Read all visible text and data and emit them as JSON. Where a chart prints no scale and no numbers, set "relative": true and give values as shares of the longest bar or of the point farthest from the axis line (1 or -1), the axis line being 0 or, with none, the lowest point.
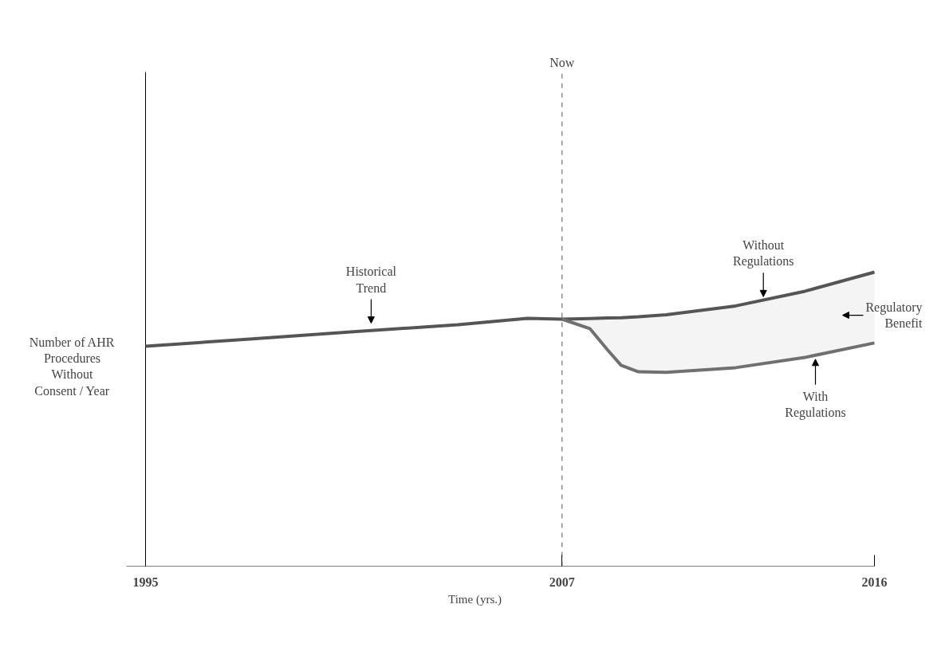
{
  "chart_data": {
    "type": "line",
    "relative": true,
    "xlabel": "Time (yrs.)",
    "ylabel": "Number of AHR Procedures Without Consent / Year",
    "xlim": [
      1995,
      2016
    ],
    "xticks": [
      1995,
      2007,
      2016
    ],
    "series": [
      {
        "color": "#555555",
        "x": [
          1995,
          1998,
          2001,
          2004,
          2006,
          2007,
          2007.8,
          2008.3,
          2008.7,
          2009.2,
          2010,
          2012,
          2014,
          2016
        ],
        "values": [
          0.748,
          0.772,
          0.797,
          0.821,
          0.843,
          0.84,
          0.842,
          0.844,
          0.845,
          0.848,
          0.855,
          0.885,
          0.935,
          1
        ]
      },
      {
        "color": "#707070",
        "x": [
          2007,
          2007.8,
          2008.3,
          2008.7,
          2009.2,
          2010,
          2012,
          2014,
          2016
        ],
        "values": [
          0.84,
          0.808,
          0.737,
          0.683,
          0.661,
          0.659,
          0.675,
          0.71,
          0.759
        ],
        "lower": [
          0.84,
          0.808,
          0.737,
          0.683,
          0.661,
          0.659,
          0.675,
          0.71,
          0.759
        ],
        "upper": [
          0.84,
          0.842,
          0.844,
          0.845,
          0.848,
          0.855,
          0.885,
          0.935,
          1
        ]
      }
    ],
    "annotations": [
      {
        "text": "Historical Trend",
        "x": 2001.5,
        "y": 0.81
      },
      {
        "text": "Without Regulations",
        "x": 2012.8,
        "y": 0.9
      },
      {
        "text": "With Regulations",
        "x": 2014.3,
        "y": 0.72
      },
      "Regulatory Benefit"
    ],
    "ref_lines": [
      {
        "axis": "x",
        "value": 2007,
        "label": "Now",
        "line_style": "dashed",
        "color": "#555555"
      }
    ],
    "grid": false,
    "marker": "none",
    "line_style": "solid"
  }
}
